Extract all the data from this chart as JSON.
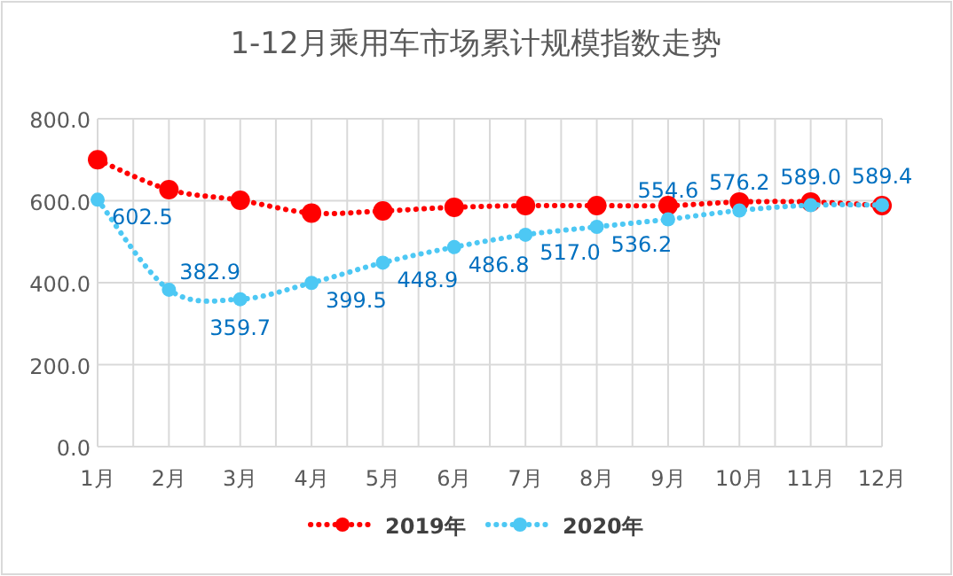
{
  "chart_data": {
    "type": "line",
    "title": "1-12月乘用车市场累计规模指数走势",
    "categories": [
      "1月",
      "2月",
      "3月",
      "4月",
      "5月",
      "6月",
      "7月",
      "8月",
      "9月",
      "10月",
      "11月",
      "12月"
    ],
    "series": [
      {
        "name": "2019年",
        "color": "#ff0000",
        "values": [
          700,
          627,
          601,
          570,
          575,
          584,
          588,
          588,
          588,
          597,
          597,
          588
        ]
      },
      {
        "name": "2020年",
        "color": "#4dc8f4",
        "values": [
          602.5,
          382.9,
          359.7,
          399.5,
          448.9,
          486.8,
          517.0,
          536.2,
          554.6,
          576.2,
          589.0,
          589.4
        ],
        "value_labels": [
          "602.5",
          "382.9",
          "359.7",
          "399.5",
          "448.9",
          "486.8",
          "517.0",
          "536.2",
          "554.6",
          "576.2",
          "589.0",
          "589.4"
        ]
      }
    ],
    "ylim": [
      0,
      800
    ],
    "yticks": [
      {
        "value": 0,
        "label": "0.0"
      },
      {
        "value": 200,
        "label": "200.0"
      },
      {
        "value": 400,
        "label": "400.0"
      },
      {
        "value": 600,
        "label": "600.0"
      },
      {
        "value": 800,
        "label": "800.0"
      }
    ],
    "grid": true,
    "legend": "bottom",
    "marker": "circle",
    "line_style": "dotted"
  }
}
